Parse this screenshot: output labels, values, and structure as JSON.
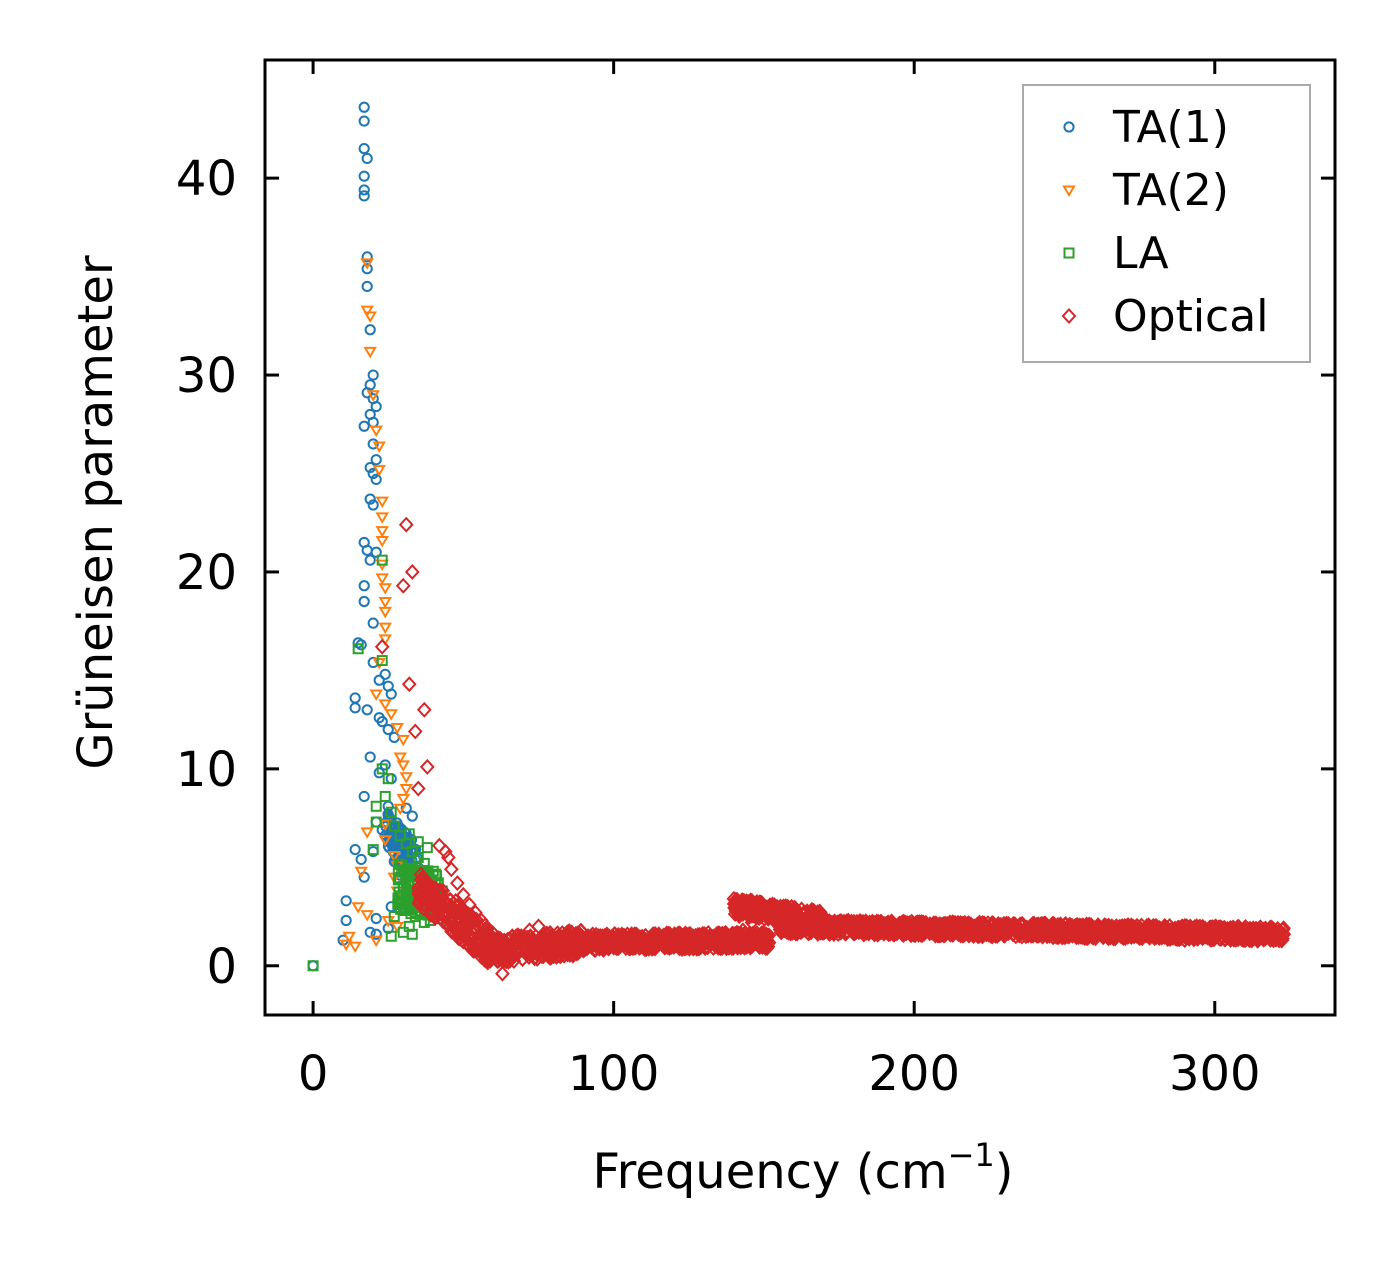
{
  "chart_data": {
    "type": "scatter",
    "title": "",
    "xlabel": "Frequency (cm",
    "xlabel_sup": "−1",
    "xlabel_close": ")",
    "ylabel": "Grüneisen parameter",
    "xlim": [
      -16,
      340
    ],
    "ylim": [
      -2.5,
      46
    ],
    "xticks": [
      0,
      100,
      200,
      300
    ],
    "yticks": [
      0,
      10,
      20,
      30,
      40
    ],
    "xtick_labels": [
      "0",
      "100",
      "200",
      "300"
    ],
    "ytick_labels": [
      "0",
      "10",
      "20",
      "30",
      "40"
    ],
    "grid": false,
    "legend_position": "top-right",
    "series": [
      {
        "name": "TA(1)",
        "marker": "circle",
        "color": "#1f77b4",
        "points": [
          [
            0,
            0
          ],
          [
            17,
            43.6
          ],
          [
            17,
            42.9
          ],
          [
            17,
            41.5
          ],
          [
            18,
            41.0
          ],
          [
            17,
            40.1
          ],
          [
            17,
            39.4
          ],
          [
            17,
            39.1
          ],
          [
            18,
            36.0
          ],
          [
            18,
            35.4
          ],
          [
            18,
            34.5
          ],
          [
            19,
            32.3
          ],
          [
            20,
            30.0
          ],
          [
            19,
            29.5
          ],
          [
            18,
            29.1
          ],
          [
            20,
            28.8
          ],
          [
            21,
            28.4
          ],
          [
            19,
            28.0
          ],
          [
            20,
            27.6
          ],
          [
            17,
            27.4
          ],
          [
            20,
            26.5
          ],
          [
            21,
            25.7
          ],
          [
            19,
            25.3
          ],
          [
            20,
            25.0
          ],
          [
            21,
            24.7
          ],
          [
            19,
            23.7
          ],
          [
            20,
            23.4
          ],
          [
            17,
            21.5
          ],
          [
            18,
            21.1
          ],
          [
            19,
            20.6
          ],
          [
            21,
            21.0
          ],
          [
            17,
            19.3
          ],
          [
            17,
            18.5
          ],
          [
            20,
            17.4
          ],
          [
            15,
            16.4
          ],
          [
            16,
            16.3
          ],
          [
            20,
            15.4
          ],
          [
            22,
            14.5
          ],
          [
            24,
            14.8
          ],
          [
            25,
            14.2
          ],
          [
            26,
            13.8
          ],
          [
            14,
            13.6
          ],
          [
            14,
            13.1
          ],
          [
            18,
            13.0
          ],
          [
            22,
            12.6
          ],
          [
            23,
            12.4
          ],
          [
            25,
            12.0
          ],
          [
            27,
            11.6
          ],
          [
            19,
            10.6
          ],
          [
            24,
            10.2
          ],
          [
            22,
            9.8
          ],
          [
            26,
            9.5
          ],
          [
            17,
            8.6
          ],
          [
            25,
            8.1
          ],
          [
            31,
            8.0
          ],
          [
            33,
            7.6
          ],
          [
            21,
            7.3
          ],
          [
            23,
            6.9
          ],
          [
            28,
            6.6
          ],
          [
            14,
            5.9
          ],
          [
            20,
            5.8
          ],
          [
            16,
            5.4
          ],
          [
            27,
            5.3
          ],
          [
            17,
            4.5
          ],
          [
            29,
            4.6
          ],
          [
            30,
            4.0
          ],
          [
            11,
            3.3
          ],
          [
            26,
            3.0
          ],
          [
            11,
            2.3
          ],
          [
            21,
            2.4
          ],
          [
            19,
            1.7
          ],
          [
            21,
            1.6
          ],
          [
            10,
            1.3
          ],
          [
            25,
            1.9
          ]
        ]
      },
      {
        "name": "TA(2)",
        "marker": "triangle-down",
        "color": "#ff7f0e",
        "points": [
          [
            18,
            35.7
          ],
          [
            18,
            33.3
          ],
          [
            19,
            33.0
          ],
          [
            19,
            31.2
          ],
          [
            20,
            29.0
          ],
          [
            21,
            27.2
          ],
          [
            22,
            26.4
          ],
          [
            22,
            25.2
          ],
          [
            23,
            23.6
          ],
          [
            23,
            22.8
          ],
          [
            23,
            22.1
          ],
          [
            23,
            21.6
          ],
          [
            23,
            20.4
          ],
          [
            23,
            19.7
          ],
          [
            24,
            19.2
          ],
          [
            24,
            18.5
          ],
          [
            24,
            18.0
          ],
          [
            24,
            17.2
          ],
          [
            24,
            16.6
          ],
          [
            22,
            15.4
          ],
          [
            21,
            13.8
          ],
          [
            24,
            13.3
          ],
          [
            26,
            12.8
          ],
          [
            28,
            12.1
          ],
          [
            30,
            11.5
          ],
          [
            29,
            10.6
          ],
          [
            30,
            10.2
          ],
          [
            31,
            9.6
          ],
          [
            31,
            9.0
          ],
          [
            30,
            8.5
          ],
          [
            29,
            8.0
          ],
          [
            24,
            7.2
          ],
          [
            18,
            6.8
          ],
          [
            24,
            6.4
          ],
          [
            27,
            5.6
          ],
          [
            28,
            5.1
          ],
          [
            16,
            4.8
          ],
          [
            27,
            4.5
          ],
          [
            28,
            3.8
          ],
          [
            32,
            3.5
          ],
          [
            15,
            3.0
          ],
          [
            18,
            2.6
          ],
          [
            25,
            2.3
          ],
          [
            28,
            2.0
          ],
          [
            12,
            1.5
          ],
          [
            11,
            1.1
          ],
          [
            14,
            1.0
          ],
          [
            21,
            1.3
          ],
          [
            32,
            2.9
          ]
        ]
      },
      {
        "name": "LA",
        "marker": "square",
        "color": "#2ca02c",
        "points": [
          [
            0,
            0
          ],
          [
            23,
            20.6
          ],
          [
            23,
            15.5
          ],
          [
            15,
            16.1
          ],
          [
            23,
            10.0
          ],
          [
            25,
            9.5
          ],
          [
            21,
            8.1
          ],
          [
            21,
            7.3
          ],
          [
            26,
            7.8
          ],
          [
            27,
            7.1
          ],
          [
            29,
            6.6
          ],
          [
            31,
            6.2
          ],
          [
            33,
            5.8
          ],
          [
            35,
            5.5
          ],
          [
            37,
            5.2
          ],
          [
            33,
            4.9
          ],
          [
            35,
            4.6
          ],
          [
            38,
            4.3
          ],
          [
            36,
            4.0
          ],
          [
            40,
            3.7
          ],
          [
            33,
            3.4
          ],
          [
            36,
            3.1
          ],
          [
            38,
            2.8
          ],
          [
            41,
            3.5
          ],
          [
            34,
            2.5
          ],
          [
            37,
            2.2
          ],
          [
            32,
            2.0
          ],
          [
            30,
            1.7
          ],
          [
            33,
            1.6
          ],
          [
            26,
            1.5
          ],
          [
            39,
            2.3
          ],
          [
            42,
            3.0
          ],
          [
            43,
            3.8
          ],
          [
            35,
            6.3
          ],
          [
            32,
            6.7
          ],
          [
            24,
            8.6
          ],
          [
            20,
            5.9
          ],
          [
            27,
            2.5
          ],
          [
            38,
            6.0
          ],
          [
            40,
            4.8
          ]
        ]
      },
      {
        "name": "Optical",
        "marker": "diamond",
        "color": "#d62728",
        "points": [
          [
            31,
            22.4
          ],
          [
            33,
            20.0
          ],
          [
            30,
            19.3
          ],
          [
            23,
            16.2
          ],
          [
            32,
            14.3
          ],
          [
            37,
            13.0
          ],
          [
            34,
            11.9
          ],
          [
            38,
            10.1
          ],
          [
            35,
            9.0
          ],
          [
            42,
            6.1
          ],
          [
            44,
            5.8
          ],
          [
            45,
            5.5
          ],
          [
            46,
            4.9
          ],
          [
            48,
            4.2
          ],
          [
            50,
            3.6
          ],
          [
            52,
            3.1
          ],
          [
            54,
            2.7
          ],
          [
            56,
            2.3
          ],
          [
            58,
            1.9
          ],
          [
            60,
            1.4
          ],
          [
            62,
            0.8
          ],
          [
            64,
            0.3
          ],
          [
            63,
            -0.4
          ],
          [
            65,
            0.2
          ],
          [
            67,
            1.0
          ],
          [
            70,
            1.4
          ],
          [
            72,
            1.8
          ],
          [
            75,
            2.0
          ],
          [
            78,
            1.6
          ],
          [
            82,
            1.2
          ],
          [
            86,
            1.0
          ],
          [
            90,
            1.4
          ],
          [
            95,
            1.5
          ],
          [
            100,
            1.1
          ],
          [
            105,
            0.9
          ],
          [
            110,
            1.2
          ],
          [
            115,
            1.6
          ],
          [
            120,
            1.4
          ],
          [
            125,
            1.3
          ],
          [
            130,
            1.1
          ],
          [
            135,
            1.3
          ],
          [
            140,
            1.6
          ],
          [
            143,
            1.8
          ],
          [
            146,
            2.2
          ],
          [
            149,
            1.5
          ],
          [
            151,
            1.3
          ],
          [
            140,
            3.4
          ],
          [
            145,
            3.1
          ],
          [
            150,
            2.7
          ],
          [
            155,
            2.4
          ],
          [
            160,
            2.3
          ],
          [
            165,
            2.6
          ],
          [
            170,
            2.4
          ],
          [
            175,
            2.0
          ],
          [
            180,
            2.2
          ],
          [
            185,
            2.0
          ],
          [
            190,
            1.8
          ],
          [
            195,
            1.9
          ],
          [
            200,
            2.1
          ],
          [
            205,
            2.0
          ],
          [
            210,
            1.9
          ],
          [
            215,
            1.8
          ],
          [
            220,
            2.0
          ],
          [
            225,
            1.9
          ],
          [
            230,
            1.8
          ],
          [
            235,
            1.9
          ],
          [
            240,
            1.8
          ],
          [
            245,
            1.7
          ],
          [
            250,
            1.8
          ],
          [
            255,
            1.7
          ],
          [
            260,
            1.6
          ],
          [
            265,
            1.7
          ],
          [
            270,
            1.5
          ],
          [
            275,
            1.6
          ],
          [
            280,
            1.4
          ],
          [
            285,
            1.5
          ],
          [
            290,
            1.3
          ],
          [
            295,
            1.6
          ],
          [
            300,
            1.8
          ],
          [
            305,
            1.7
          ],
          [
            310,
            1.6
          ],
          [
            315,
            1.5
          ],
          [
            320,
            1.6
          ],
          [
            323,
            1.6
          ]
        ]
      }
    ],
    "dense_bands": [
      {
        "series": "Optical",
        "x_from": 35,
        "x_to": 60,
        "y_center_from": 4.0,
        "y_center_to": 0.8,
        "spread": 1.8
      },
      {
        "series": "Optical",
        "x_from": 60,
        "x_to": 90,
        "y_center_from": 0.8,
        "y_center_to": 1.2,
        "spread": 1.3
      },
      {
        "series": "Optical",
        "x_from": 90,
        "x_to": 152,
        "y_center_from": 1.2,
        "y_center_to": 1.3,
        "spread": 0.8
      },
      {
        "series": "Optical",
        "x_from": 140,
        "x_to": 170,
        "y_center_from": 3.0,
        "y_center_to": 2.3,
        "spread": 0.9
      },
      {
        "series": "Optical",
        "x_from": 155,
        "x_to": 323,
        "y_center_from": 2.0,
        "y_center_to": 1.6,
        "spread": 0.7
      },
      {
        "series": "LA",
        "x_from": 28,
        "x_to": 42,
        "y_center_from": 4.0,
        "y_center_to": 3.5,
        "spread": 2.4
      },
      {
        "series": "TA(1)",
        "x_from": 24,
        "x_to": 35,
        "y_center_from": 7.0,
        "y_center_to": 5.0,
        "spread": 2.0
      }
    ]
  }
}
